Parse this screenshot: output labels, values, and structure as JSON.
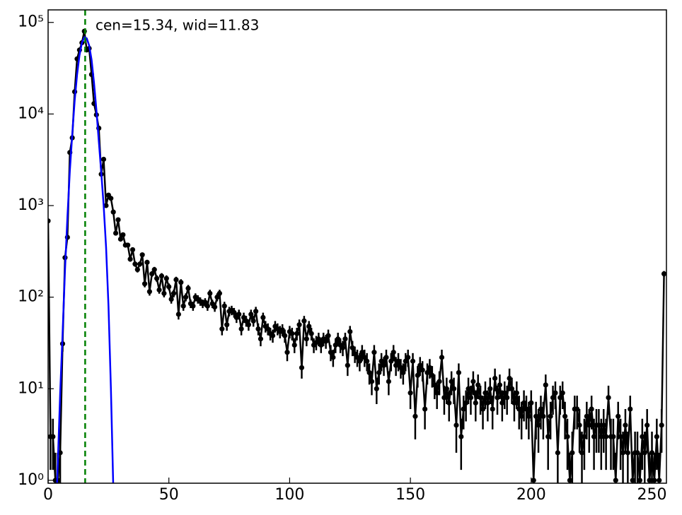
{
  "chart_data": {
    "type": "scatter",
    "log_y": true,
    "xlim": [
      0,
      256
    ],
    "ylim": [
      0.93,
      137000
    ],
    "xticks": [
      0,
      50,
      100,
      150,
      200,
      250
    ],
    "yticks": [
      {
        "value": 1,
        "label": "10⁰"
      },
      {
        "value": 10,
        "label": "10¹"
      },
      {
        "value": 100,
        "label": "10²"
      },
      {
        "value": 1000,
        "label": "10³"
      },
      {
        "value": 10000,
        "label": "10⁴"
      },
      {
        "value": 100000,
        "label": "10⁵"
      }
    ],
    "annotation": "cen=15.34, wid=11.83",
    "vline": {
      "x": 15.34,
      "color": "#008000"
    },
    "series": [
      {
        "color": "#000000",
        "x": [
          0,
          1,
          2,
          3,
          4,
          5,
          6,
          7,
          8,
          9,
          10,
          11,
          12,
          13,
          14,
          15,
          16,
          17,
          18,
          19,
          20,
          21,
          22,
          23,
          24,
          25,
          26,
          27,
          28,
          29,
          30,
          31,
          32,
          33,
          34,
          35,
          36,
          37,
          38,
          39,
          40,
          41,
          42,
          43,
          44,
          45,
          46,
          47,
          48,
          49,
          50,
          51,
          52,
          53,
          54,
          55,
          56,
          57,
          58,
          59,
          60,
          61,
          62,
          63,
          64,
          65,
          66,
          67,
          68,
          69,
          70,
          71,
          72,
          73,
          74,
          75,
          76,
          77,
          78,
          79,
          80,
          81,
          82,
          83,
          84,
          85,
          86,
          87,
          88,
          89,
          90,
          91,
          92,
          93,
          94,
          95,
          96,
          97,
          98,
          99,
          100,
          101,
          102,
          103,
          104,
          105,
          106,
          107,
          108,
          109,
          110,
          111,
          112,
          113,
          114,
          115,
          116,
          117,
          118,
          119,
          120,
          121,
          122,
          123,
          124,
          125,
          126,
          127,
          128,
          129,
          130,
          131,
          132,
          133,
          134,
          135,
          136,
          137,
          138,
          139,
          140,
          141,
          142,
          143,
          144,
          145,
          146,
          147,
          148,
          149,
          150,
          151,
          152,
          153,
          154,
          155,
          156,
          157,
          158,
          159,
          160,
          161,
          162,
          163,
          164,
          165,
          166,
          167,
          168,
          169,
          170,
          171,
          172,
          173,
          174,
          175,
          176,
          177,
          178,
          179,
          180,
          181,
          182,
          183,
          184,
          185,
          186,
          187,
          188,
          189,
          190,
          191,
          192,
          193,
          194,
          195,
          196,
          197,
          198,
          199,
          200,
          201,
          202,
          203,
          204,
          205,
          206,
          207,
          208,
          209,
          210,
          211,
          212,
          213,
          214,
          215,
          216,
          217,
          218,
          219,
          220,
          221,
          222,
          223,
          224,
          225,
          226,
          227,
          228,
          229,
          230,
          231,
          232,
          233,
          234,
          235,
          236,
          237,
          238,
          239,
          240,
          241,
          242,
          243,
          244,
          245,
          246,
          247,
          248,
          249,
          250,
          251,
          252,
          253,
          254,
          255
        ],
        "values": [
          680,
          3,
          3,
          1,
          1,
          2,
          31,
          270,
          450,
          3800,
          5500,
          17500,
          40000,
          50000,
          60000,
          80000,
          50000,
          52000,
          27000,
          13000,
          9800,
          7000,
          2200,
          3200,
          1000,
          1300,
          1200,
          850,
          500,
          700,
          430,
          480,
          370,
          370,
          260,
          330,
          230,
          200,
          230,
          290,
          140,
          240,
          115,
          180,
          200,
          160,
          120,
          170,
          110,
          160,
          130,
          95,
          110,
          155,
          65,
          145,
          80,
          100,
          125,
          85,
          80,
          100,
          95,
          90,
          85,
          88,
          80,
          110,
          85,
          78,
          100,
          110,
          45,
          80,
          50,
          70,
          72,
          68,
          60,
          65,
          45,
          60,
          55,
          50,
          65,
          55,
          70,
          45,
          35,
          60,
          48,
          45,
          40,
          38,
          48,
          45,
          42,
          44,
          38,
          25,
          42,
          40,
          30,
          40,
          50,
          17,
          55,
          35,
          48,
          40,
          30,
          32,
          35,
          30,
          35,
          33,
          38,
          25,
          22,
          30,
          35,
          30,
          28,
          35,
          18,
          42,
          28,
          24,
          22,
          20,
          25,
          22,
          20,
          15,
          12,
          25,
          10,
          15,
          20,
          18,
          22,
          12,
          20,
          25,
          18,
          20,
          17,
          15,
          20,
          22,
          9,
          20,
          5,
          14,
          18,
          16,
          6,
          15,
          17,
          14,
          11,
          9,
          12,
          22,
          8,
          10,
          7,
          12,
          10,
          4,
          15,
          3,
          6,
          7,
          10,
          8,
          12,
          7,
          11,
          8,
          6,
          9,
          7,
          10,
          6,
          13,
          8,
          11,
          7,
          9,
          8,
          13,
          10,
          7,
          9,
          6,
          5,
          7,
          6,
          5,
          7,
          1,
          5,
          4,
          6,
          5,
          11,
          3,
          5,
          8,
          9,
          2,
          8,
          9,
          5,
          3,
          1,
          2,
          6,
          6,
          4,
          2,
          3,
          5,
          4,
          6,
          3,
          4,
          4,
          3,
          4,
          3,
          8,
          3,
          3,
          1,
          5,
          3,
          2,
          4,
          2,
          6,
          1,
          2,
          2,
          1,
          3,
          2,
          4,
          1,
          2,
          1,
          3,
          1,
          4,
          180
        ],
        "errors": [
          26,
          1.7,
          1.7,
          1,
          1,
          1.4,
          5.6,
          16,
          21,
          62,
          74,
          132,
          200,
          224,
          245,
          283,
          224,
          228,
          164,
          114,
          99,
          84,
          47,
          57,
          32,
          36,
          35,
          29,
          22,
          26,
          21,
          22,
          19,
          19,
          16,
          18,
          15,
          14,
          15,
          17,
          12,
          15.5,
          11,
          13,
          14,
          13,
          11,
          13,
          10.5,
          13,
          11,
          10,
          10.5,
          12,
          8,
          12,
          9,
          10,
          11,
          9,
          9,
          10,
          10,
          9.5,
          9,
          9.4,
          9,
          10.5,
          9,
          8.8,
          10,
          10.5,
          6.7,
          9,
          7,
          8.4,
          8.5,
          8.2,
          7.7,
          8,
          6.7,
          7.7,
          7.4,
          7,
          8,
          7.4,
          8.4,
          6.7,
          5.9,
          7.7,
          6.9,
          6.7,
          6.3,
          6.2,
          6.9,
          6.7,
          6.5,
          6.6,
          6.2,
          5,
          6.5,
          6.3,
          5.5,
          6.3,
          7,
          4.1,
          7.4,
          5.9,
          6.9,
          6.3,
          5.5,
          5.7,
          5.9,
          5.5,
          5.9,
          5.7,
          6.2,
          5,
          4.7,
          5.5,
          5.9,
          5.5,
          5.3,
          5.9,
          4.2,
          6.5,
          5.3,
          4.9,
          4.7,
          4.5,
          5,
          4.7,
          4.5,
          3.9,
          3.5,
          5,
          3.2,
          3.9,
          4.5,
          4.2,
          4.7,
          3.5,
          4.5,
          5,
          4.2,
          4.5,
          4.1,
          3.9,
          4.5,
          4.7,
          3,
          4.5,
          2.2,
          3.7,
          4.2,
          4,
          2.4,
          3.9,
          4.1,
          3.7,
          3.3,
          3,
          3.5,
          4.7,
          2.8,
          3.2,
          2.6,
          3.5,
          3.2,
          2,
          3.9,
          1.7,
          2.4,
          2.6,
          3.2,
          2.8,
          3.5,
          2.6,
          3.3,
          2.8,
          2.4,
          3,
          2.6,
          3.2,
          2.4,
          3.6,
          2.8,
          3.3,
          2.6,
          3,
          2.8,
          3.6,
          3.2,
          2.6,
          3,
          2.4,
          2.2,
          2.6,
          2.4,
          2.2,
          2.6,
          1,
          2.2,
          2,
          2.4,
          2.2,
          3.3,
          1.7,
          2.2,
          2.8,
          3,
          1.4,
          2.8,
          3,
          2.2,
          1.7,
          1,
          1.4,
          2.4,
          2.4,
          2,
          1.4,
          1.7,
          2.2,
          2,
          2.4,
          1.7,
          2,
          2,
          1.7,
          2,
          1.7,
          2.8,
          1.7,
          1.7,
          1,
          2.2,
          1.7,
          1.4,
          2,
          1.4,
          2.4,
          1,
          1.4,
          1.4,
          1,
          1.7,
          1.4,
          2,
          1,
          1.4,
          1,
          1.7,
          1,
          2,
          13
        ]
      },
      {
        "color": "#0000ff",
        "type": "line",
        "x": [
          3,
          4,
          5,
          6,
          7,
          8,
          9,
          10,
          11,
          12,
          13,
          14,
          15,
          16,
          17,
          18,
          19,
          20,
          21,
          22,
          23,
          24,
          25,
          26,
          27
        ],
        "values": [
          0.3,
          1.5,
          9,
          40,
          200,
          750,
          2400,
          6000,
          14000,
          27000,
          44000,
          60000,
          69000,
          67000,
          56000,
          39000,
          22000,
          11000,
          5000,
          2300,
          1000,
          350,
          80,
          10,
          0.8
        ]
      }
    ]
  }
}
